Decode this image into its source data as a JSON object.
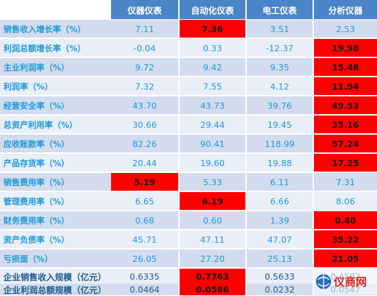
{
  "table": {
    "headers": [
      "",
      "仪器仪表",
      "自动化仪表",
      "电工仪表",
      "分析仪器"
    ],
    "rows": [
      {
        "label": "销售收入增长率（%）",
        "values": [
          "7.11",
          "7.36",
          "3.51",
          "2.53"
        ],
        "highlight": [
          false,
          true,
          false,
          false
        ]
      },
      {
        "label": "利润总额增长率（%）",
        "values": [
          "-0.04",
          "0.33",
          "-12.37",
          "19.98"
        ],
        "highlight": [
          false,
          false,
          false,
          true
        ]
      },
      {
        "label": "主业利润率（%）",
        "values": [
          "9.72",
          "9.42",
          "9.35",
          "15.48"
        ],
        "highlight": [
          false,
          false,
          false,
          true
        ]
      },
      {
        "label": "利润率（%）",
        "values": [
          "7.32",
          "7.55",
          "4.12",
          "11.94"
        ],
        "highlight": [
          false,
          false,
          false,
          true
        ]
      },
      {
        "label": "经营安全率（%）",
        "values": [
          "43.70",
          "43.73",
          "39.76",
          "49.53"
        ],
        "highlight": [
          false,
          false,
          false,
          true
        ]
      },
      {
        "label": "总资产利用率（%）",
        "values": [
          "30.66",
          "29.44",
          "19.45",
          "35.16"
        ],
        "highlight": [
          false,
          false,
          false,
          true
        ]
      },
      {
        "label": "应收账款率（%）",
        "values": [
          "82.26",
          "90.41",
          "118.99",
          "57.24"
        ],
        "highlight": [
          false,
          false,
          false,
          true
        ]
      },
      {
        "label": "产品存货率（%）",
        "values": [
          "20.44",
          "19.60",
          "19.88",
          "17.25"
        ],
        "highlight": [
          false,
          false,
          false,
          true
        ]
      },
      {
        "label": "销售费用率（%）",
        "values": [
          "5.19",
          "5.33",
          "6.11",
          "7.31"
        ],
        "highlight": [
          true,
          false,
          false,
          false
        ]
      },
      {
        "label": "管理费用率（%）",
        "values": [
          "6.65",
          "6.19",
          "6.66",
          "8.06"
        ],
        "highlight": [
          false,
          true,
          false,
          false
        ]
      },
      {
        "label": "财务费用率（%）",
        "values": [
          "0.68",
          "0.60",
          "1.39",
          "0.40"
        ],
        "highlight": [
          false,
          false,
          false,
          true
        ]
      },
      {
        "label": "资产负债率（%）",
        "values": [
          "45.71",
          "47.11",
          "47.07",
          "35.22"
        ],
        "highlight": [
          false,
          false,
          false,
          true
        ]
      },
      {
        "label": "亏损面（%）",
        "values": [
          "26.05",
          "27.20",
          "25.13",
          "21.05"
        ],
        "highlight": [
          false,
          false,
          false,
          true
        ]
      },
      {
        "label": "企业销售收入规模（亿元）",
        "values": [
          "0.6335",
          "0.7763",
          "0.5633",
          "0.4582"
        ],
        "highlight": [
          false,
          true,
          false,
          false
        ]
      },
      {
        "label": "企业利润总额规模（亿元）",
        "values": [
          "0.0464",
          "0.0586",
          "0.0232",
          "0.0547"
        ],
        "highlight": [
          false,
          true,
          false,
          false
        ]
      }
    ]
  },
  "watermark": {
    "text": "仪商网"
  },
  "colors": {
    "header": "#4a86c7",
    "highlight": "#ff0000",
    "label": "#1e9ad9",
    "row_dark": "#d3dcee",
    "row_light": "#eaeef7"
  }
}
